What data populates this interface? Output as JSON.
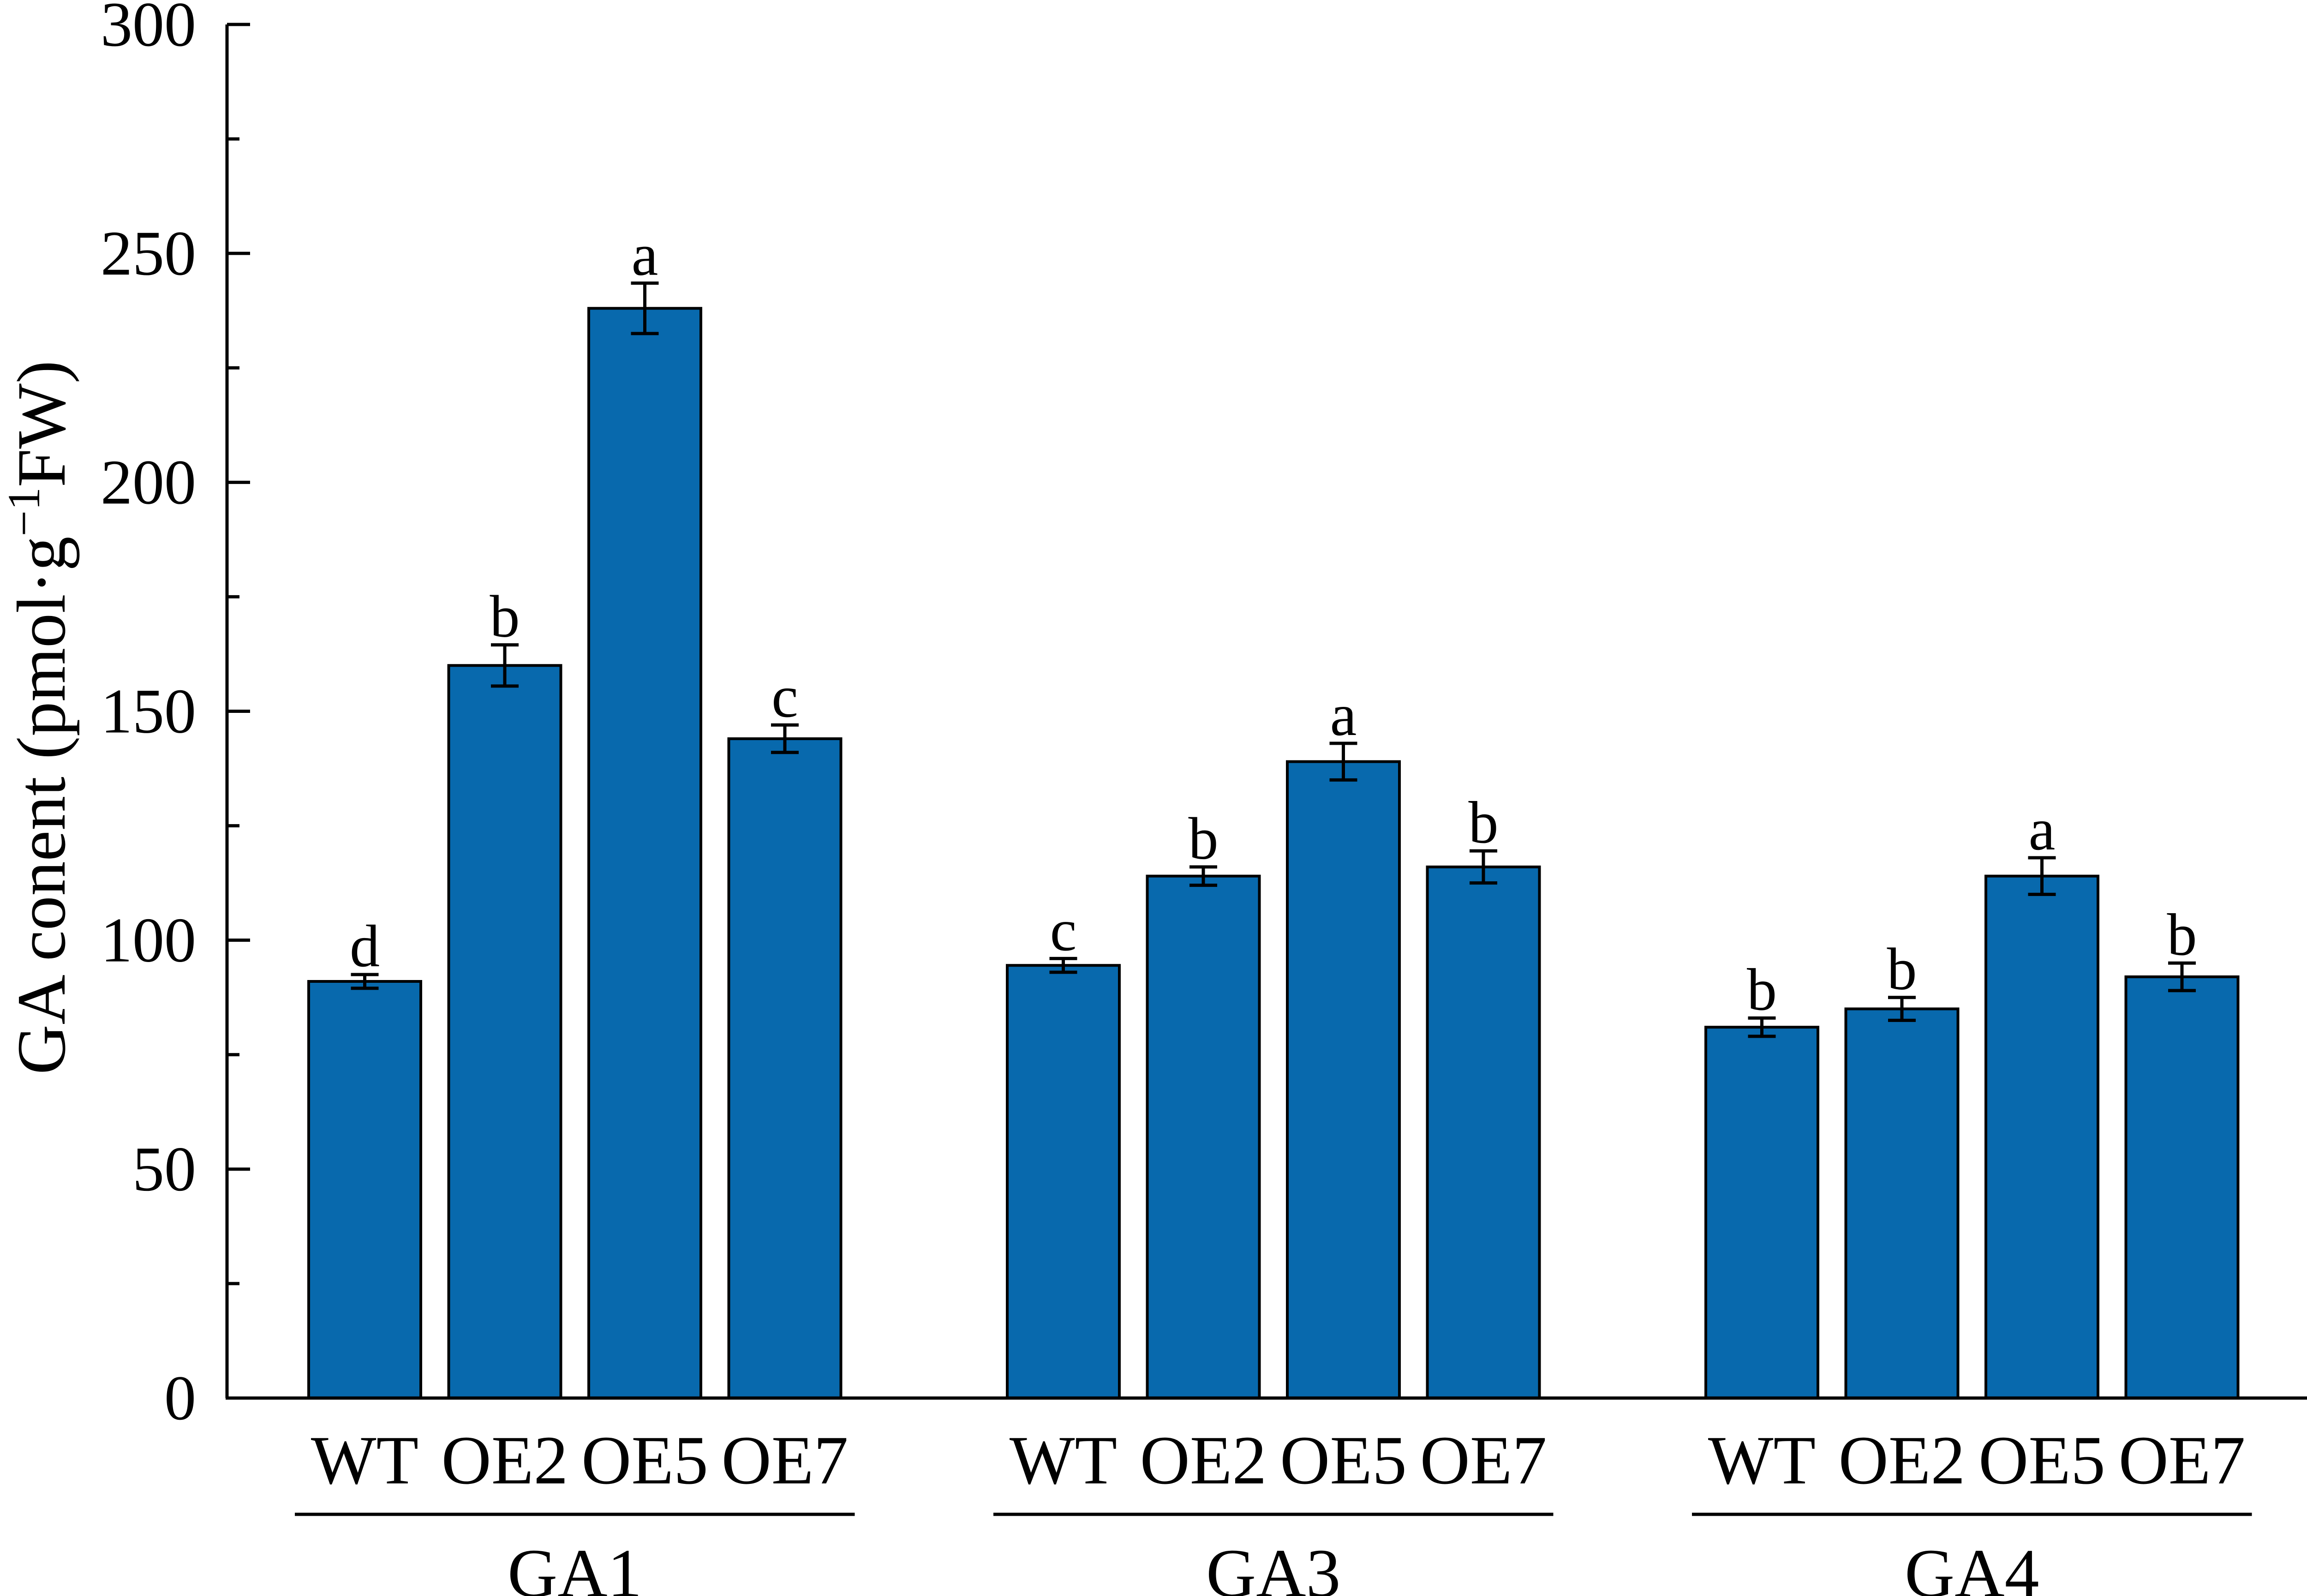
{
  "chart_data": {
    "type": "bar",
    "ylabel": "GA conent (pmol·g",
    "ylabel_sup": "−1",
    "ylabel_tail": "FW)",
    "ylim": [
      0,
      300
    ],
    "ytick_step": 50,
    "yminor_step": 25,
    "yticks": [
      "0",
      "50",
      "100",
      "150",
      "200",
      "250",
      "300"
    ],
    "grid": false,
    "bar_color": "#0869ad",
    "groups": [
      {
        "name": "GA1",
        "categories": [
          "WT",
          "OE2",
          "OE5",
          "OE7"
        ],
        "values": [
          91,
          160,
          238,
          144
        ],
        "errors": [
          1.5,
          4.5,
          5.5,
          3
        ],
        "letters": [
          "d",
          "b",
          "a",
          "c"
        ]
      },
      {
        "name": "GA3",
        "categories": [
          "WT",
          "OE2",
          "OE5",
          "OE7"
        ],
        "values": [
          94.5,
          114,
          139,
          116
        ],
        "errors": [
          1.5,
          2,
          4,
          3.5
        ],
        "letters": [
          "c",
          "b",
          "a",
          "b"
        ]
      },
      {
        "name": "GA4",
        "categories": [
          "WT",
          "OE2",
          "OE5",
          "OE7"
        ],
        "values": [
          81,
          85,
          114,
          92
        ],
        "errors": [
          2,
          2.5,
          4,
          3
        ],
        "letters": [
          "b",
          "b",
          "a",
          "b"
        ]
      }
    ]
  }
}
